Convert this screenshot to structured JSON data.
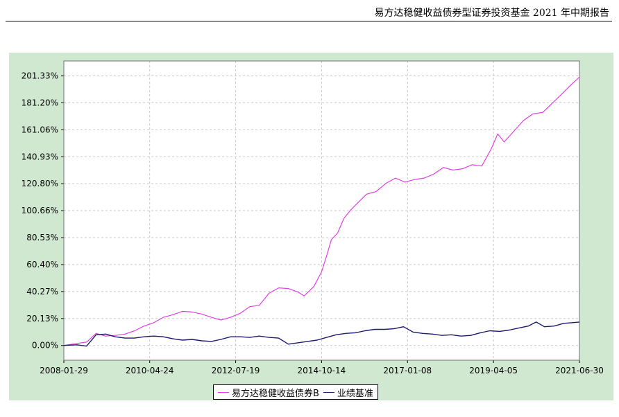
{
  "header": {
    "report_title": "易方达稳健收益债券型证券投资基金 2021 年中期报告"
  },
  "colors": {
    "panel_bg": "#cfe8cf",
    "plot_bg": "#ffffff",
    "fund_line": "#e040e0",
    "benchmark_line": "#1a1a6e",
    "grid": "#c8c8c8"
  },
  "chart_data": {
    "type": "line",
    "grid": true,
    "legend_position": "bottom-center",
    "ylim": [
      -11.0,
      212.5
    ],
    "yticks": [
      {
        "value": 0.0,
        "label": "0.00%"
      },
      {
        "value": 20.13,
        "label": "20.13%"
      },
      {
        "value": 40.27,
        "label": "40.27%"
      },
      {
        "value": 60.4,
        "label": "60.40%"
      },
      {
        "value": 80.53,
        "label": "80.53%"
      },
      {
        "value": 100.66,
        "label": "100.66%"
      },
      {
        "value": 120.8,
        "label": "120.80%"
      },
      {
        "value": 140.93,
        "label": "140.93%"
      },
      {
        "value": 161.06,
        "label": "161.06%"
      },
      {
        "value": 181.2,
        "label": "181.20%"
      },
      {
        "value": 201.33,
        "label": "201.33%"
      }
    ],
    "xrange": [
      "2008-01-29",
      "2021-06-30"
    ],
    "xticks": [
      "2008-01-29",
      "2010-04-24",
      "2012-07-19",
      "2014-10-14",
      "2017-01-08",
      "2019-04-05",
      "2021-06-30"
    ],
    "series": [
      {
        "name": "易方达稳健收益债券B",
        "color": "#e040e0",
        "points": [
          [
            "2008-01-29",
            0.0
          ],
          [
            "2008-06-01",
            1.5
          ],
          [
            "2008-09-01",
            2.5
          ],
          [
            "2008-12-01",
            9.0
          ],
          [
            "2009-03-01",
            7.0
          ],
          [
            "2009-06-01",
            7.5
          ],
          [
            "2009-09-01",
            8.5
          ],
          [
            "2009-12-01",
            11.0
          ],
          [
            "2010-03-01",
            14.5
          ],
          [
            "2010-06-01",
            17.0
          ],
          [
            "2010-09-01",
            21.0
          ],
          [
            "2010-12-01",
            23.0
          ],
          [
            "2011-03-01",
            25.5
          ],
          [
            "2011-06-01",
            25.0
          ],
          [
            "2011-09-01",
            23.5
          ],
          [
            "2011-12-01",
            21.0
          ],
          [
            "2012-03-01",
            19.0
          ],
          [
            "2012-06-01",
            21.0
          ],
          [
            "2012-09-01",
            24.0
          ],
          [
            "2012-12-01",
            29.0
          ],
          [
            "2013-03-01",
            30.0
          ],
          [
            "2013-06-01",
            39.0
          ],
          [
            "2013-09-01",
            43.0
          ],
          [
            "2013-12-01",
            42.5
          ],
          [
            "2014-03-01",
            40.0
          ],
          [
            "2014-05-01",
            37.0
          ],
          [
            "2014-08-01",
            44.0
          ],
          [
            "2014-10-14",
            55.0
          ],
          [
            "2014-12-01",
            67.0
          ],
          [
            "2015-01-15",
            79.0
          ],
          [
            "2015-03-15",
            84.0
          ],
          [
            "2015-05-15",
            95.0
          ],
          [
            "2015-07-15",
            101.0
          ],
          [
            "2015-09-15",
            106.0
          ],
          [
            "2015-12-15",
            113.0
          ],
          [
            "2016-03-15",
            115.0
          ],
          [
            "2016-06-15",
            121.0
          ],
          [
            "2016-09-15",
            125.0
          ],
          [
            "2016-12-15",
            122.0
          ],
          [
            "2017-03-15",
            124.0
          ],
          [
            "2017-06-15",
            125.0
          ],
          [
            "2017-09-15",
            128.0
          ],
          [
            "2017-12-15",
            133.0
          ],
          [
            "2018-03-15",
            131.0
          ],
          [
            "2018-06-15",
            132.0
          ],
          [
            "2018-09-15",
            135.0
          ],
          [
            "2018-12-15",
            134.0
          ],
          [
            "2019-03-15",
            147.0
          ],
          [
            "2019-05-15",
            158.0
          ],
          [
            "2019-07-15",
            152.0
          ],
          [
            "2019-10-15",
            160.0
          ],
          [
            "2020-01-15",
            168.0
          ],
          [
            "2020-04-15",
            173.0
          ],
          [
            "2020-07-15",
            174.0
          ],
          [
            "2020-10-15",
            181.0
          ],
          [
            "2021-01-15",
            188.0
          ],
          [
            "2021-04-15",
            195.0
          ],
          [
            "2021-06-30",
            200.5
          ]
        ]
      },
      {
        "name": "业绩基准",
        "color": "#1a1a6e",
        "points": [
          [
            "2008-01-29",
            0.0
          ],
          [
            "2008-06-01",
            0.5
          ],
          [
            "2008-09-01",
            -0.5
          ],
          [
            "2008-12-01",
            8.0
          ],
          [
            "2009-03-01",
            8.5
          ],
          [
            "2009-06-01",
            6.5
          ],
          [
            "2009-09-01",
            5.5
          ],
          [
            "2009-12-01",
            5.5
          ],
          [
            "2010-03-01",
            6.5
          ],
          [
            "2010-06-01",
            7.0
          ],
          [
            "2010-09-01",
            6.5
          ],
          [
            "2010-12-01",
            5.0
          ],
          [
            "2011-03-01",
            4.0
          ],
          [
            "2011-06-01",
            4.5
          ],
          [
            "2011-09-01",
            3.5
          ],
          [
            "2011-12-01",
            3.0
          ],
          [
            "2012-03-01",
            4.5
          ],
          [
            "2012-06-01",
            6.5
          ],
          [
            "2012-09-01",
            6.5
          ],
          [
            "2012-12-01",
            6.0
          ],
          [
            "2013-03-01",
            7.0
          ],
          [
            "2013-06-01",
            6.0
          ],
          [
            "2013-09-01",
            5.5
          ],
          [
            "2013-12-01",
            1.0
          ],
          [
            "2014-03-01",
            2.0
          ],
          [
            "2014-06-01",
            3.0
          ],
          [
            "2014-09-01",
            4.0
          ],
          [
            "2014-12-01",
            6.0
          ],
          [
            "2015-03-01",
            8.0
          ],
          [
            "2015-06-01",
            9.0
          ],
          [
            "2015-09-01",
            9.5
          ],
          [
            "2015-12-01",
            11.0
          ],
          [
            "2016-03-01",
            12.0
          ],
          [
            "2016-06-01",
            12.0
          ],
          [
            "2016-09-01",
            12.5
          ],
          [
            "2016-12-01",
            14.0
          ],
          [
            "2017-03-01",
            10.0
          ],
          [
            "2017-06-01",
            9.0
          ],
          [
            "2017-09-01",
            8.5
          ],
          [
            "2017-12-01",
            7.5
          ],
          [
            "2018-03-01",
            8.0
          ],
          [
            "2018-06-01",
            7.0
          ],
          [
            "2018-09-01",
            7.5
          ],
          [
            "2018-12-01",
            9.5
          ],
          [
            "2019-03-01",
            11.0
          ],
          [
            "2019-06-01",
            10.5
          ],
          [
            "2019-09-01",
            11.5
          ],
          [
            "2019-12-01",
            13.0
          ],
          [
            "2020-03-01",
            14.5
          ],
          [
            "2020-05-15",
            17.5
          ],
          [
            "2020-08-01",
            14.0
          ],
          [
            "2020-11-01",
            14.5
          ],
          [
            "2021-02-01",
            16.5
          ],
          [
            "2021-04-15",
            17.0
          ],
          [
            "2021-06-30",
            17.5
          ]
        ]
      }
    ]
  }
}
